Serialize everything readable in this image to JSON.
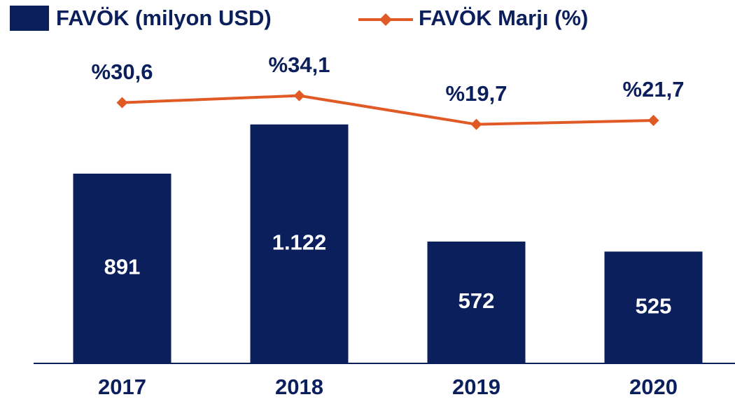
{
  "chart_data": {
    "type": "bar_line",
    "categories": [
      "2017",
      "2018",
      "2019",
      "2020"
    ],
    "series": [
      {
        "name": "FAVÖK (milyon USD)",
        "type": "bar",
        "color": "#0b1f5c",
        "values": [
          891,
          1122,
          572,
          525
        ],
        "value_labels": [
          "891",
          "1.122",
          "572",
          "525"
        ]
      },
      {
        "name": "FAVÖK Marjı (%)",
        "type": "line",
        "axis": "y2",
        "color": "#e05a26",
        "values": [
          30.6,
          34.1,
          19.7,
          21.7
        ],
        "value_labels": [
          "%30,6",
          "%34,1",
          "%19,7",
          "%21,7"
        ]
      }
    ],
    "ylim": [
      0,
      1200
    ],
    "y2lim": [
      -100,
      28
    ],
    "legend": "top"
  }
}
